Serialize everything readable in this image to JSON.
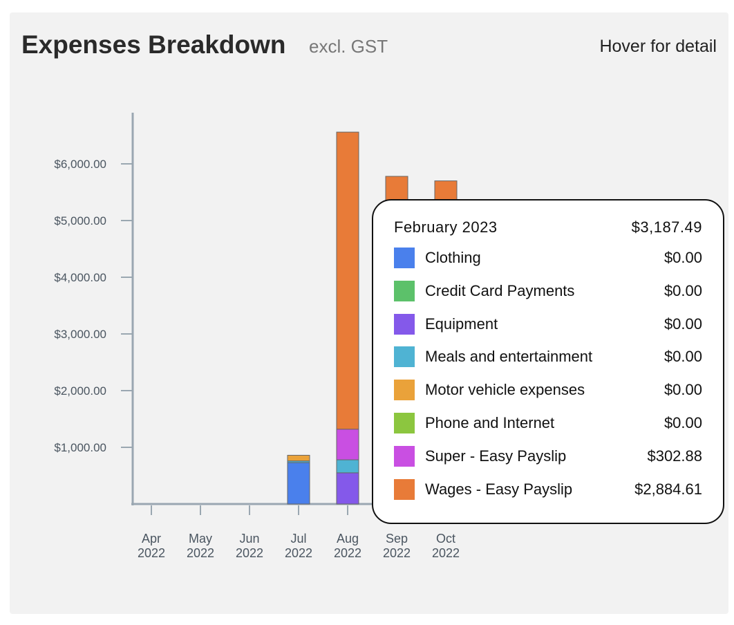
{
  "header": {
    "title": "Expenses Breakdown",
    "subtitle": "excl. GST",
    "hint": "Hover for detail"
  },
  "chart_data": {
    "type": "bar",
    "stacked": true,
    "categories": [
      "Apr 2022",
      "May 2022",
      "Jun 2022",
      "Jul 2022",
      "Aug 2022",
      "Sep 2022",
      "Oct 2022"
    ],
    "yticks": [
      "$1,000.00",
      "$2,000.00",
      "$3,000.00",
      "$4,000.00",
      "$5,000.00",
      "$6,000.00"
    ],
    "ylim": [
      0,
      6900
    ],
    "series": [
      {
        "name": "Clothing",
        "color": "#4a80ec",
        "values": [
          0,
          0,
          0,
          730,
          0,
          0,
          0
        ]
      },
      {
        "name": "Credit Card Payments",
        "color": "#5cc16a",
        "values": [
          0,
          0,
          0,
          0,
          0,
          0,
          0
        ]
      },
      {
        "name": "Equipment",
        "color": "#8459ea",
        "values": [
          0,
          0,
          0,
          0,
          550,
          0,
          0
        ]
      },
      {
        "name": "Meals and entertainment",
        "color": "#4fb3d3",
        "values": [
          0,
          0,
          0,
          30,
          230,
          0,
          0
        ]
      },
      {
        "name": "Motor vehicle expenses",
        "color": "#eaa23a",
        "values": [
          0,
          0,
          0,
          100,
          0,
          0,
          0
        ]
      },
      {
        "name": "Phone and Internet",
        "color": "#8cc63f",
        "values": [
          0,
          0,
          0,
          0,
          0,
          0,
          0
        ]
      },
      {
        "name": "Super - Easy Payslip",
        "color": "#c94fe2",
        "values": [
          0,
          0,
          0,
          0,
          540,
          0,
          0
        ]
      },
      {
        "name": "Wages - Easy Payslip",
        "color": "#e87b38",
        "values": [
          0,
          0,
          0,
          0,
          5240,
          5780,
          5700
        ]
      }
    ]
  },
  "tooltip": {
    "month": "February 2023",
    "total": "$3,187.49",
    "items": [
      {
        "label": "Clothing",
        "value": "$0.00"
      },
      {
        "label": "Credit Card Payments",
        "value": "$0.00"
      },
      {
        "label": "Equipment",
        "value": "$0.00"
      },
      {
        "label": "Meals and entertainment",
        "value": "$0.00"
      },
      {
        "label": "Motor vehicle expenses",
        "value": "$0.00"
      },
      {
        "label": "Phone and Internet",
        "value": "$0.00"
      },
      {
        "label": "Super - Easy Payslip",
        "value": "$302.88"
      },
      {
        "label": "Wages - Easy Payslip",
        "value": "$2,884.61"
      }
    ]
  }
}
